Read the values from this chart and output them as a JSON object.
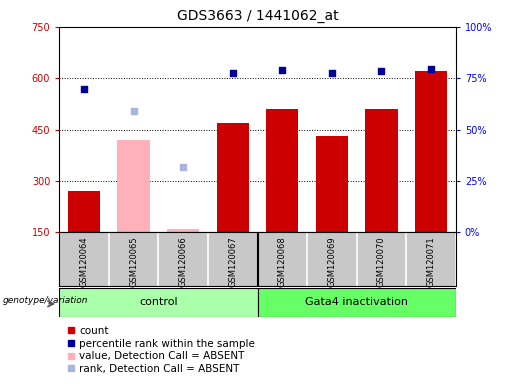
{
  "title": "GDS3663 / 1441062_at",
  "samples": [
    "GSM120064",
    "GSM120065",
    "GSM120066",
    "GSM120067",
    "GSM120068",
    "GSM120069",
    "GSM120070",
    "GSM120071"
  ],
  "bar_values": [
    270,
    null,
    null,
    470,
    510,
    430,
    510,
    620
  ],
  "bar_absent_values": [
    null,
    420,
    160,
    null,
    null,
    null,
    null,
    null
  ],
  "scatter_present": [
    570,
    null,
    null,
    615,
    625,
    615,
    620,
    628
  ],
  "scatter_absent": [
    null,
    505,
    340,
    null,
    null,
    null,
    null,
    null
  ],
  "ylim_left": [
    150,
    750
  ],
  "ylim_right": [
    0,
    100
  ],
  "yticks_left": [
    150,
    300,
    450,
    600,
    750
  ],
  "yticks_right": [
    0,
    25,
    50,
    75,
    100
  ],
  "bar_color_present": "#cc0000",
  "bar_color_absent": "#ffb0b8",
  "scatter_color_present": "#000099",
  "scatter_color_absent": "#aab4dd",
  "bg_color": "#c8c8c8",
  "plot_bg": "white",
  "label_fontsize": 7,
  "title_fontsize": 10,
  "legend_labels": [
    "count",
    "percentile rank within the sample",
    "value, Detection Call = ABSENT",
    "rank, Detection Call = ABSENT"
  ],
  "legend_colors": [
    "#cc0000",
    "#000099",
    "#ffb0b8",
    "#aab4dd"
  ],
  "right_axis_color": "blue",
  "left_axis_color": "#cc0000",
  "genotype_label": "genotype/variation",
  "group_labels": [
    "control",
    "Gata4 inactivation"
  ],
  "group_colors": [
    "#aaffaa",
    "#66ff66"
  ],
  "control_count": 4
}
